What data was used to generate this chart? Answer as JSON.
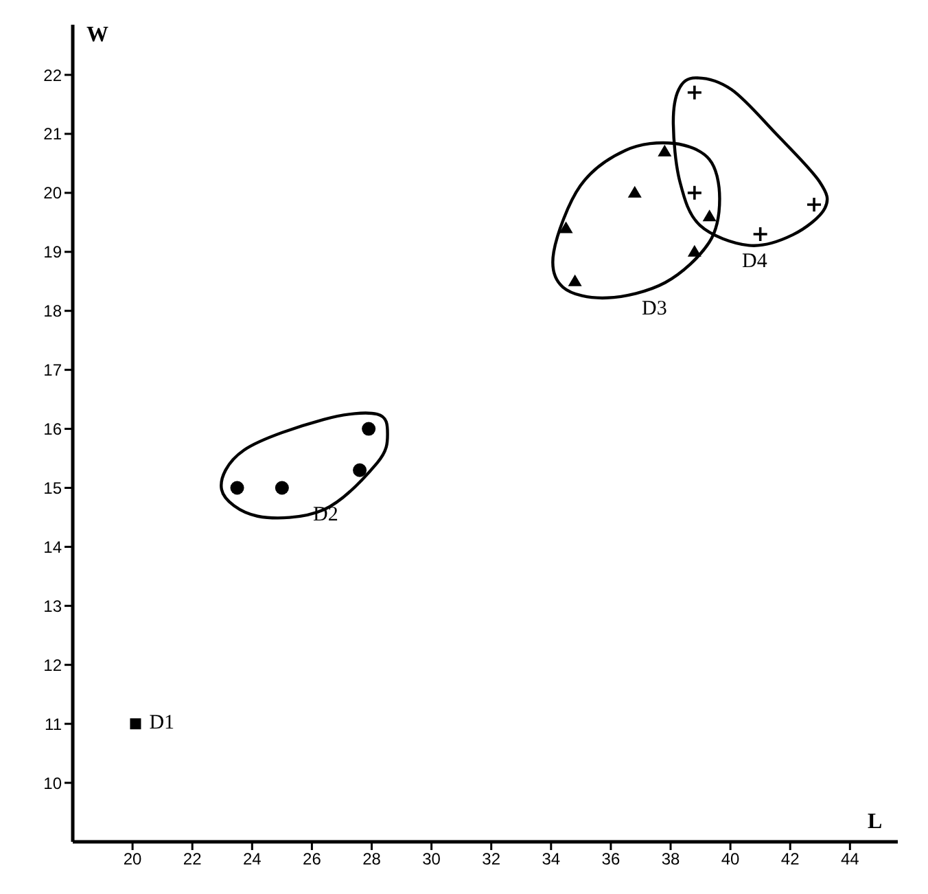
{
  "chart_data": {
    "type": "scatter",
    "xlabel": "L",
    "ylabel": "W",
    "xlim": [
      18,
      45.6
    ],
    "xticks": [
      20,
      22,
      24,
      26,
      28,
      30,
      32,
      34,
      36,
      38,
      40,
      42,
      44
    ],
    "ylim": [
      9,
      22.85
    ],
    "yticks": [
      10,
      11,
      12,
      13,
      14,
      15,
      16,
      17,
      18,
      19,
      20,
      21,
      22
    ],
    "grid": false,
    "legend": false,
    "series": [
      {
        "name": "D1",
        "color": "#000000",
        "marker": "square",
        "x": [
          20.1
        ],
        "values": [
          11
        ]
      },
      {
        "name": "D2",
        "color": "#000000",
        "marker": "circle",
        "x": [
          23.5,
          25.0,
          27.6,
          27.9
        ],
        "values": [
          15.0,
          15.0,
          15.3,
          16.0
        ]
      },
      {
        "name": "D3",
        "color": "#000000",
        "marker": "triangle",
        "x": [
          34.5,
          34.8,
          36.8,
          37.8,
          38.8,
          39.3
        ],
        "values": [
          19.4,
          18.5,
          20.0,
          20.7,
          19.0,
          19.6
        ]
      },
      {
        "name": "D4",
        "color": "#000000",
        "marker": "cross",
        "x": [
          38.8,
          38.8,
          41.0,
          42.8
        ],
        "values": [
          21.7,
          20.0,
          19.3,
          19.8
        ]
      }
    ]
  }
}
